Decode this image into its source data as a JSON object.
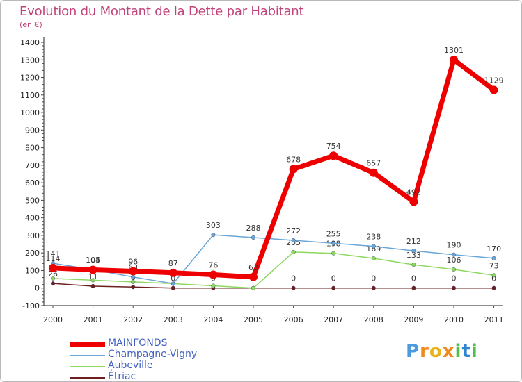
{
  "title": "Evolution du Montant de la Dette par Habitant",
  "subtitle": "(en €)",
  "logo": {
    "text": "Proxiti",
    "colors": [
      "#4a9be0",
      "#f08a1d",
      "#e8b41a",
      "#f08a1d",
      "#4ec04a",
      "#2f86d0",
      "#4ec04a"
    ]
  },
  "chart_data": {
    "type": "line",
    "x": [
      "2000",
      "2001",
      "2002",
      "2003",
      "2004",
      "2005",
      "2006",
      "2007",
      "2008",
      "2009",
      "2010",
      "2011"
    ],
    "ylim": [
      -100,
      1400
    ],
    "yticks": [
      -100,
      0,
      100,
      200,
      300,
      400,
      500,
      600,
      700,
      800,
      900,
      1000,
      1100,
      1200,
      1300,
      1400
    ],
    "grid": false,
    "legend_position": "bottom-left",
    "series": [
      {
        "name": "Étriac",
        "color": "#6b1f1f",
        "width": 1.5,
        "marker": 2.8,
        "values": [
          26,
          11,
          6,
          0,
          0,
          0,
          0,
          0,
          0,
          0,
          0,
          0
        ],
        "labels": [
          "26",
          "11",
          "6",
          "0",
          "0",
          "0",
          "0",
          "0",
          "0",
          "0",
          "0",
          "0"
        ]
      },
      {
        "name": "Aubeville",
        "color": "#8cd860",
        "width": 1.5,
        "marker": 2.8,
        "values": [
          55,
          45,
          35,
          25,
          13,
          0,
          205,
          198,
          169,
          133,
          106,
          73
        ],
        "labels": [
          "",
          "",
          "",
          "",
          "",
          "",
          "205",
          "198",
          "169",
          "133",
          "106",
          "73"
        ]
      },
      {
        "name": "Champagne-Vigny",
        "color": "#6aa6d6",
        "width": 1.5,
        "marker": 2.8,
        "values": [
          141,
          105,
          63,
          25,
          303,
          288,
          272,
          255,
          238,
          212,
          190,
          170
        ],
        "labels": [
          "141",
          "105",
          "63",
          "",
          "303",
          "288",
          "272",
          "255",
          "238",
          "212",
          "190",
          "170"
        ]
      },
      {
        "name": "MAINFONDS",
        "color": "#ee0000",
        "width": 7,
        "marker": 6,
        "values": [
          114,
          104,
          96,
          87,
          76,
          63,
          678,
          754,
          657,
          492,
          1301,
          1129
        ],
        "labels": [
          "114",
          "104",
          "96",
          "87",
          "76",
          "63",
          "678",
          "754",
          "657",
          "492",
          "1301",
          "1129"
        ]
      }
    ]
  }
}
